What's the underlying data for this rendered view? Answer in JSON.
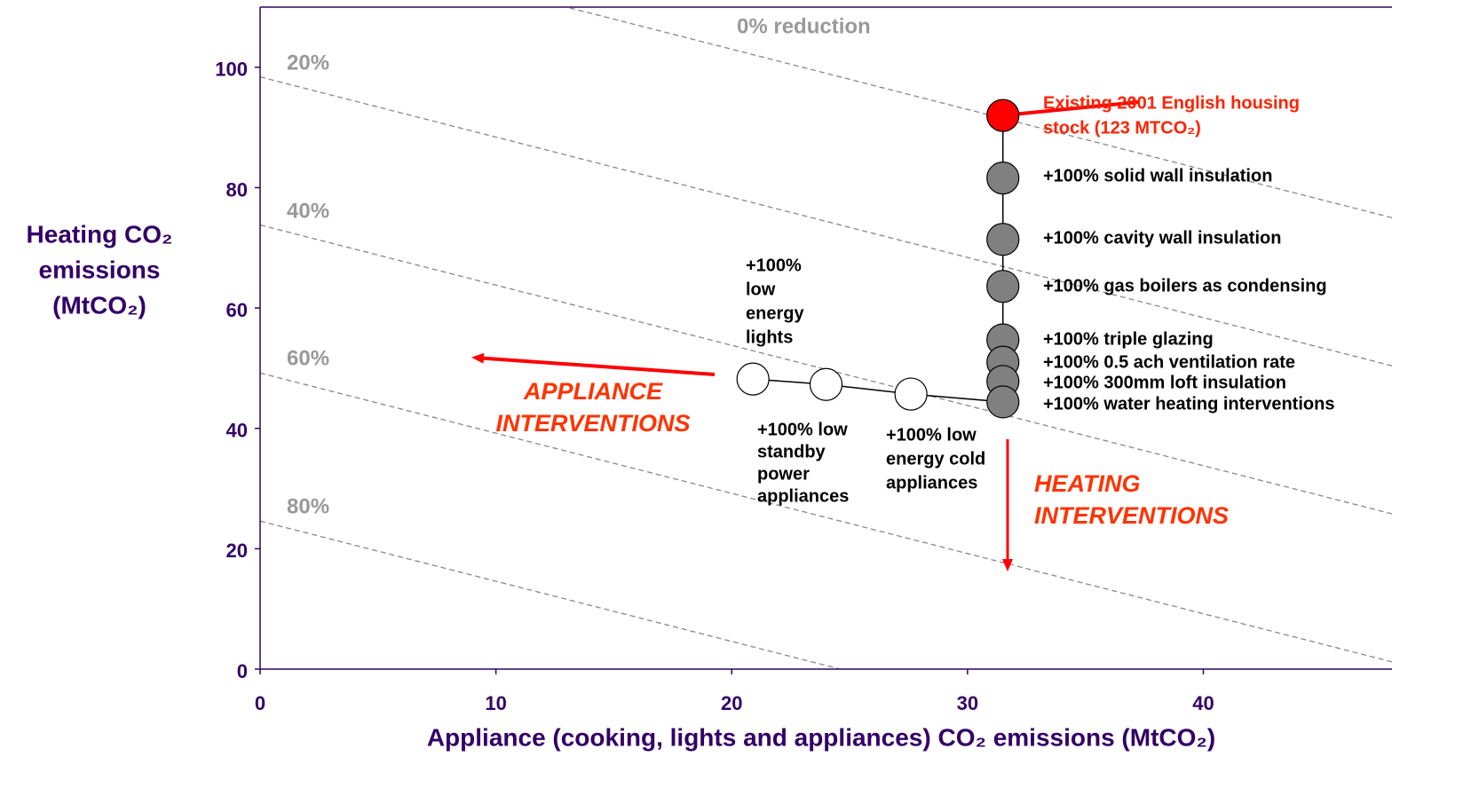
{
  "chart_data": {
    "type": "scatter",
    "xlabel": "Appliance (cooking, lights and appliances) CO₂ emissions (MtCO₂)",
    "ylabel": [
      "Heating CO₂",
      "emissions",
      "(MtCO₂)"
    ],
    "xlim": [
      0,
      48
    ],
    "ylim": [
      0,
      110
    ],
    "xticks": [
      0,
      10,
      20,
      30,
      40
    ],
    "yticks": [
      0,
      20,
      40,
      60,
      80,
      100
    ],
    "reduction_lines": [
      {
        "label": "0% reduction",
        "total": 123
      },
      {
        "label": "20%",
        "total": 98.4
      },
      {
        "label": "40%",
        "total": 73.8
      },
      {
        "label": "60%",
        "total": 49.2
      },
      {
        "label": "80%",
        "total": 24.6
      }
    ],
    "series": [
      {
        "color": "#ff0000",
        "x": [
          31.5
        ],
        "y": [
          92.0
        ],
        "labels": [
          [
            "Existing 2001 English housing",
            "stock (123 MTCO₂)"
          ]
        ]
      },
      {
        "color": "#808080",
        "x": [
          31.5,
          31.5,
          31.5,
          31.5,
          31.5,
          31.5,
          31.5
        ],
        "y": [
          81.6,
          71.4,
          63.6,
          54.7,
          51.0,
          47.8,
          44.4
        ],
        "labels": [
          [
            "+100% solid wall insulation"
          ],
          [
            "+100% cavity wall insulation"
          ],
          [
            "+100% gas boilers as condensing"
          ],
          [
            "+100% triple glazing"
          ],
          [
            "+100% 0.5 ach ventilation rate"
          ],
          [
            "+100% 300mm loft insulation"
          ],
          [
            "+100% water heating interventions"
          ]
        ]
      },
      {
        "color": "#ffffff",
        "x": [
          27.6,
          24.0,
          20.9
        ],
        "y": [
          45.7,
          47.3,
          48.2
        ],
        "labels": [
          [
            "+100% low",
            "energy cold",
            "appliances"
          ],
          [
            "+100% low",
            "standby",
            "power",
            "appliances"
          ],
          [
            "+100%",
            "low",
            "energy",
            "lights"
          ]
        ]
      }
    ],
    "annotations": [
      [
        "APPLIANCE",
        "INTERVENTIONS"
      ],
      [
        "HEATING",
        "INTERVENTIONS"
      ]
    ]
  }
}
